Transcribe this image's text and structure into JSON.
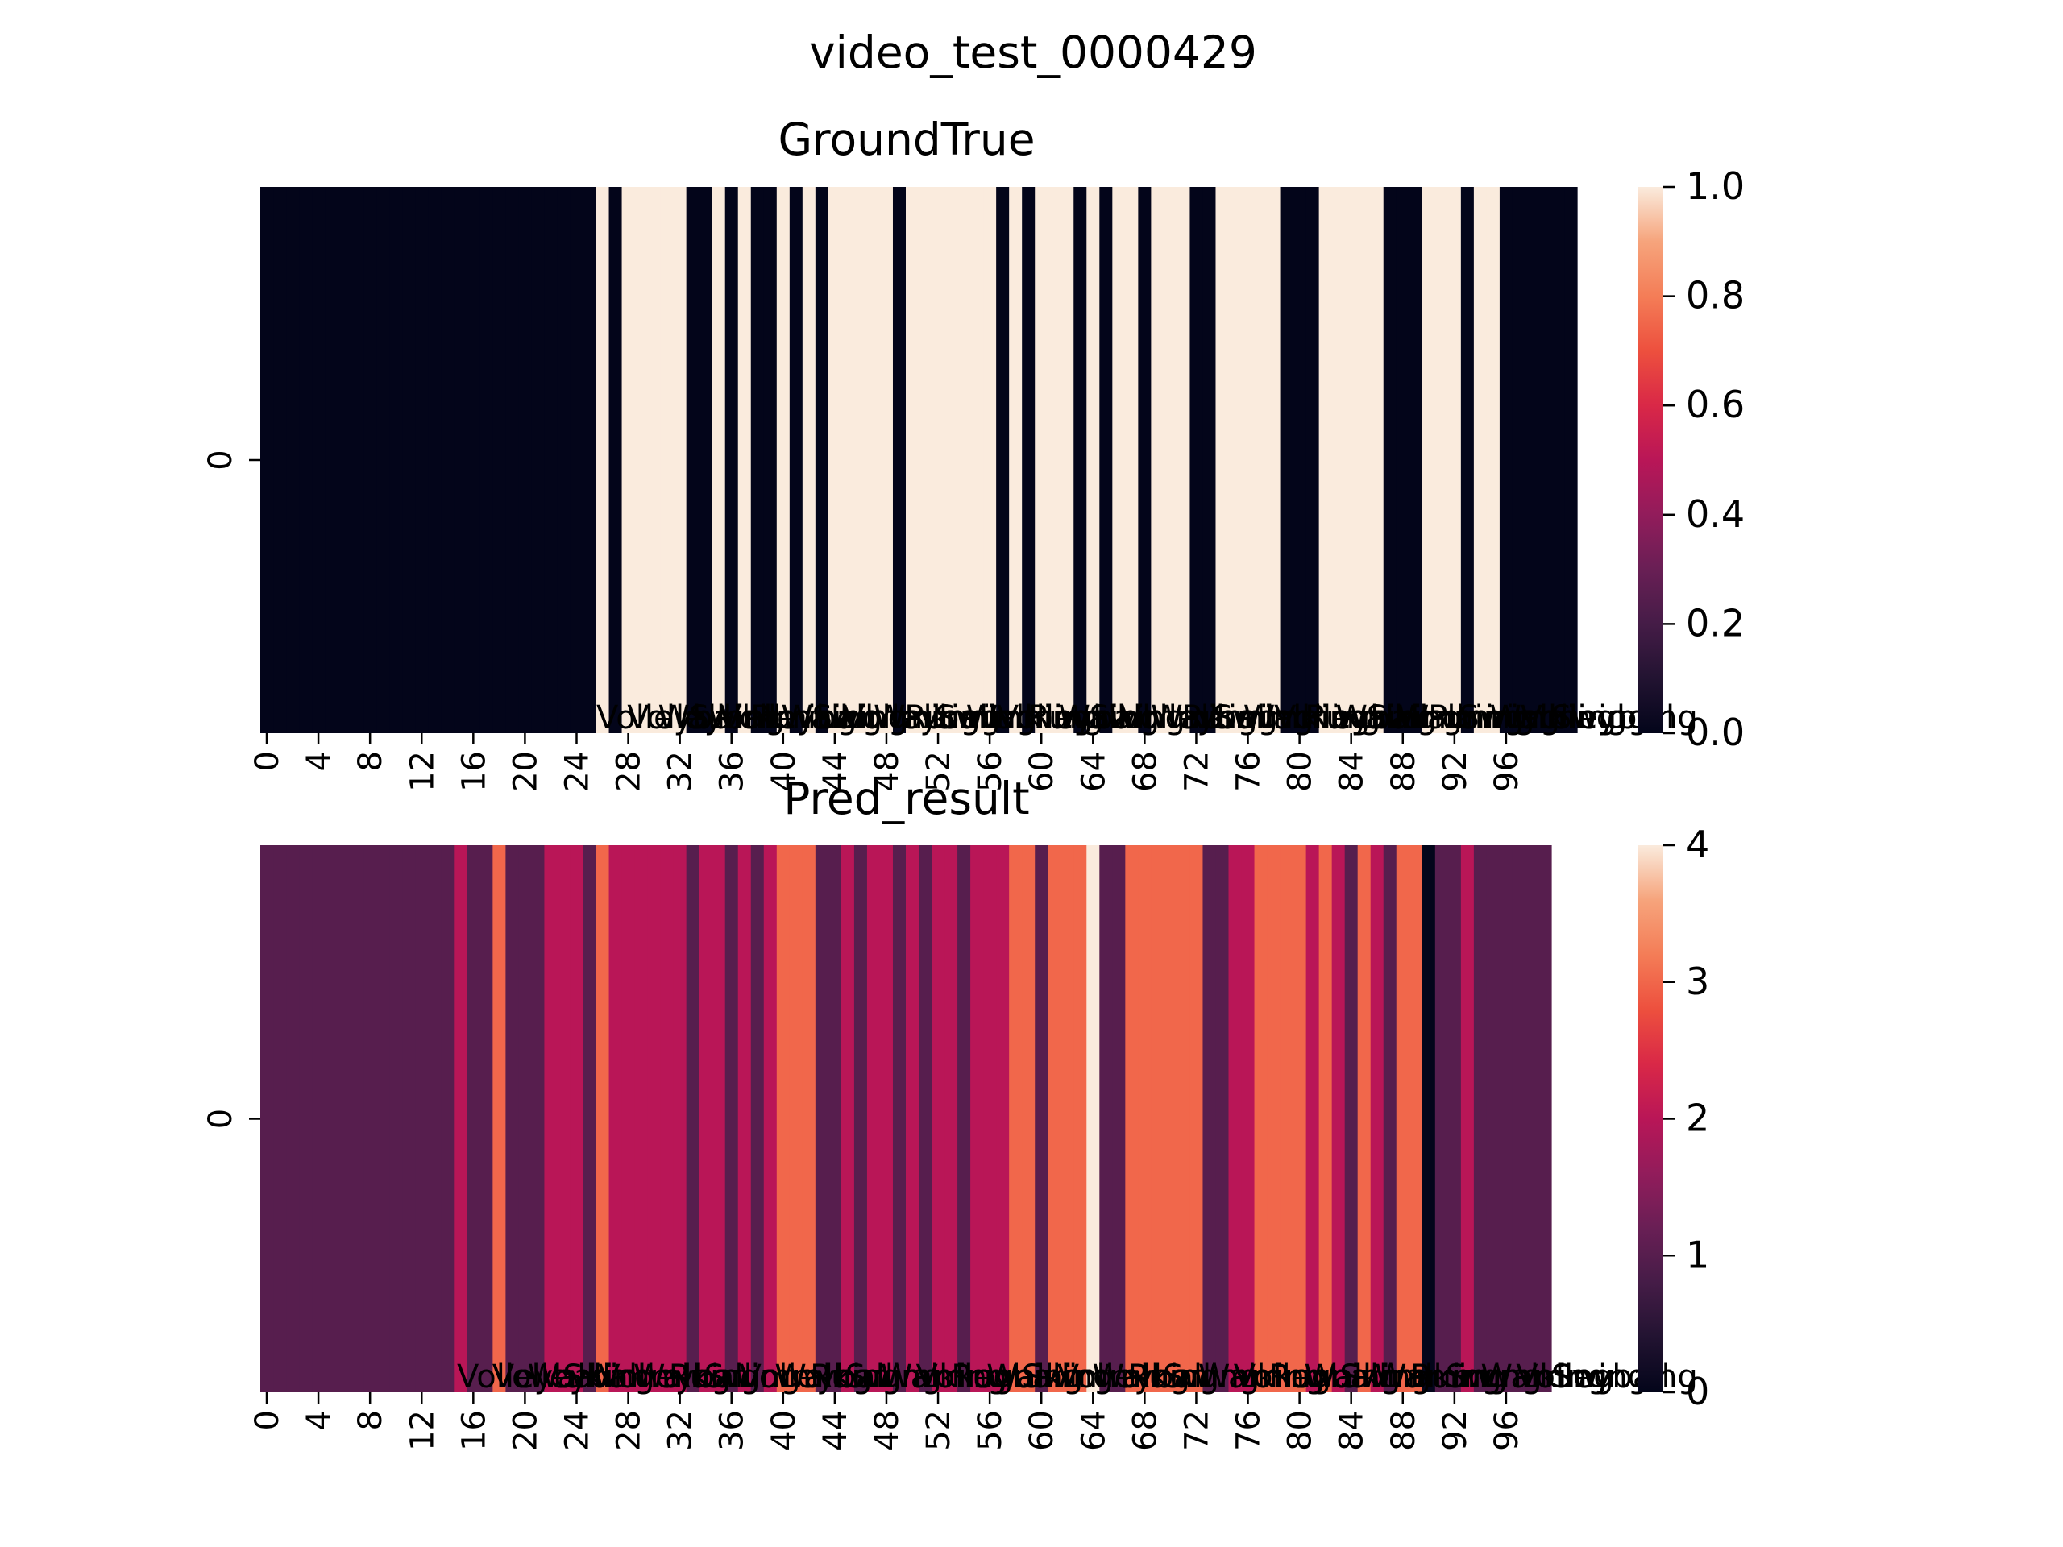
{
  "figure": {
    "suptitle": "video_test_0000429"
  },
  "chart_data": [
    {
      "type": "heatmap",
      "title": "GroundTrue",
      "rows": 1,
      "cols": 100,
      "y_tick_labels": [
        "0"
      ],
      "x_tick_labels": [
        "0",
        "4",
        "8",
        "12",
        "16",
        "20",
        "24",
        "28",
        "32",
        "36",
        "40",
        "44",
        "48",
        "52",
        "56",
        "60",
        "64",
        "68",
        "72",
        "76",
        "80",
        "84",
        "88",
        "92",
        "96"
      ],
      "x_tick_step": 4,
      "colormap": "rocket",
      "colorbar": {
        "vmin": 0.0,
        "vmax": 1.0,
        "ticks": [
          "0.0",
          "0.2",
          "0.4",
          "0.6",
          "0.8",
          "1.0"
        ]
      },
      "values": [
        0,
        0,
        0,
        0,
        0,
        0,
        0,
        0,
        0,
        0,
        0,
        0,
        0,
        0,
        0,
        0,
        0,
        0,
        0,
        0,
        0,
        0,
        0,
        0,
        0,
        0,
        1,
        0,
        1,
        1,
        1,
        1,
        1,
        0,
        0,
        1,
        0,
        1,
        0,
        0,
        1,
        0,
        1,
        0,
        1,
        1,
        1,
        1,
        1,
        0,
        1,
        1,
        1,
        1,
        1,
        1,
        1,
        0,
        1,
        0,
        1,
        1,
        1,
        0,
        1,
        0,
        1,
        1,
        0,
        1,
        1,
        1,
        0,
        0,
        1,
        1,
        1,
        1,
        1,
        0,
        0,
        0,
        1,
        1,
        1,
        1,
        1,
        0,
        0,
        0,
        1,
        1,
        1,
        0,
        1,
        1,
        0,
        0,
        0,
        0,
        0,
        0
      ],
      "overlay_labels": [
        "Volleyball",
        "Volleyball",
        "Walking",
        "Swimming",
        "Volleyball",
        "Running",
        "Walking",
        "Swimming",
        "Volleyball",
        "Walking",
        "Running",
        "Swimming",
        "Walking",
        "Volleyball",
        "Running",
        "Walking",
        "Swimming",
        "Volleyball",
        "Walking",
        "Running",
        "Swimming",
        "Walking",
        "Volleyball",
        "Running",
        "Walking",
        "Swimming",
        "Walking",
        "Running",
        "Swimming",
        "Walking",
        "Volleyball",
        "Swinging"
      ]
    },
    {
      "type": "heatmap",
      "title": "Pred_result",
      "rows": 1,
      "cols": 100,
      "y_tick_labels": [
        "0"
      ],
      "x_tick_labels": [
        "0",
        "4",
        "8",
        "12",
        "16",
        "20",
        "24",
        "28",
        "32",
        "36",
        "40",
        "44",
        "48",
        "52",
        "56",
        "60",
        "64",
        "68",
        "72",
        "76",
        "80",
        "84",
        "88",
        "92",
        "96"
      ],
      "x_tick_step": 4,
      "colormap": "rocket",
      "colorbar": {
        "vmin": 0,
        "vmax": 4,
        "ticks": [
          "0",
          "1",
          "2",
          "3",
          "4"
        ]
      },
      "values": [
        1,
        1,
        1,
        1,
        1,
        1,
        1,
        1,
        1,
        1,
        1,
        1,
        1,
        1,
        1,
        2,
        1,
        1,
        3,
        1,
        1,
        1,
        2,
        2,
        2,
        1,
        3,
        2,
        2,
        2,
        2,
        2,
        2,
        1,
        2,
        2,
        1,
        2,
        1,
        2,
        3,
        3,
        3,
        1,
        1,
        2,
        1,
        2,
        2,
        1,
        2,
        1,
        2,
        2,
        1,
        2,
        2,
        2,
        3,
        3,
        1,
        3,
        3,
        3,
        4,
        1,
        1,
        3,
        3,
        3,
        3,
        3,
        3,
        1,
        1,
        2,
        2,
        3,
        3,
        3,
        3,
        2,
        3,
        2,
        1,
        3,
        2,
        1,
        3,
        3,
        0,
        1,
        1,
        2,
        1,
        1,
        1,
        1,
        1,
        1
      ],
      "overlay_labels": [
        "Volleyball",
        "Volleyball",
        "Walking",
        "Swimming",
        "Volleyball",
        "Walking",
        "Running",
        "Swimming",
        "Volleyball",
        "Walking",
        "Running",
        "Swimming",
        "Walking",
        "Volleyball",
        "Running",
        "Walking",
        "Swimming",
        "Volleyball",
        "Walking",
        "Running",
        "Swimming",
        "Walking",
        "Volleyball",
        "Running",
        "Walking",
        "Swimming",
        "Walking",
        "Running",
        "Swimming",
        "Walking",
        "Volleyball",
        "Swinging"
      ]
    }
  ]
}
